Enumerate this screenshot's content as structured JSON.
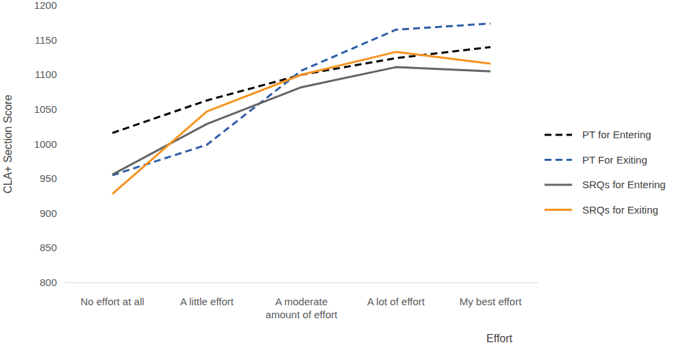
{
  "chart_data": {
    "type": "line",
    "x_label": "Effort",
    "y_label": "CLA+ Section Score",
    "categories": [
      "No effort at all",
      "A little effort",
      "A moderate amount of effort",
      "A lot of effort",
      "My best effort"
    ],
    "series": [
      {
        "name": "PT for Entering",
        "color": "#000000",
        "line_style": "dashed",
        "values": [
          1016,
          1063,
          1100,
          1124,
          1140
        ]
      },
      {
        "name": "PT For Exiting",
        "color": "#2f5ea8",
        "line_style": "dashed",
        "values": [
          955,
          999,
          1106,
          1165,
          1174
        ]
      },
      {
        "name": "SRQs for Entering",
        "color": "#646464",
        "line_style": "solid",
        "values": [
          956,
          1029,
          1082,
          1111,
          1105
        ]
      },
      {
        "name": "SRQs for Exiting",
        "color": "#f7931e",
        "line_style": "solid",
        "values": [
          928,
          1047,
          1100,
          1133,
          1116
        ]
      }
    ],
    "ylim": [
      800,
      1200
    ],
    "yticks": [
      800,
      850,
      900,
      950,
      1000,
      1050,
      1100,
      1150,
      1200
    ],
    "grid": false,
    "legend": "right"
  }
}
